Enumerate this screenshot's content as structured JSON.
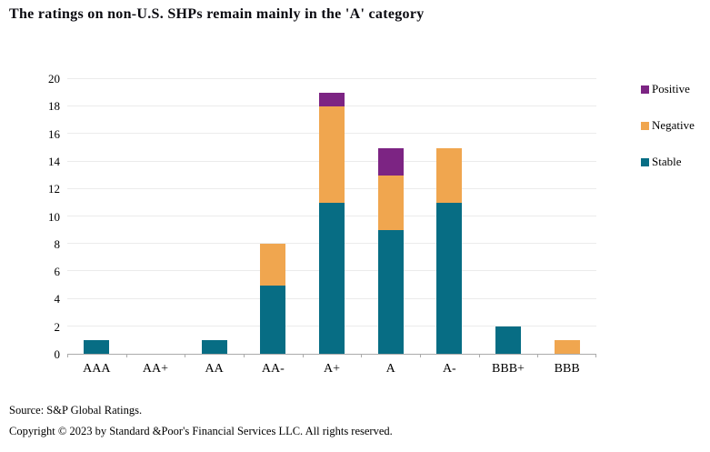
{
  "footer": {
    "source": "Source: S&P Global Ratings.",
    "copyright": "Copyright © 2023 by Standard &Poor's Financial Services LLC. All rights reserved."
  },
  "colors": {
    "stable": "#076d84",
    "negative": "#f0a64f",
    "positive": "#7c2483",
    "gridline": "#ebebeb",
    "axis_line": "#ababab",
    "text": "#000000"
  },
  "chart_data": {
    "type": "bar",
    "stacked": true,
    "title": "The ratings on non-U.S. SHPs remain mainly in the 'A' category",
    "categories": [
      "AAA",
      "AA+",
      "AA",
      "AA-",
      "A+",
      "A",
      "A-",
      "BBB+",
      "BBB"
    ],
    "series": [
      {
        "name": "Stable",
        "color": "#076d84",
        "values": [
          1,
          0,
          1,
          5,
          11,
          9,
          11,
          2,
          0
        ]
      },
      {
        "name": "Negative",
        "color": "#f0a64f",
        "values": [
          0,
          0,
          0,
          3,
          7,
          4,
          4,
          0,
          1
        ]
      },
      {
        "name": "Positive",
        "color": "#7c2483",
        "values": [
          0,
          0,
          0,
          0,
          1,
          2,
          0,
          0,
          0
        ]
      }
    ],
    "totals": [
      1,
      0,
      1,
      8,
      19,
      15,
      15,
      2,
      1
    ],
    "legend_order": [
      "Positive",
      "Negative",
      "Stable"
    ],
    "legend_position": "right",
    "xlabel": "",
    "ylabel": "",
    "ylim": [
      0,
      20
    ],
    "ytick_step": 2,
    "grid": "horizontal"
  }
}
